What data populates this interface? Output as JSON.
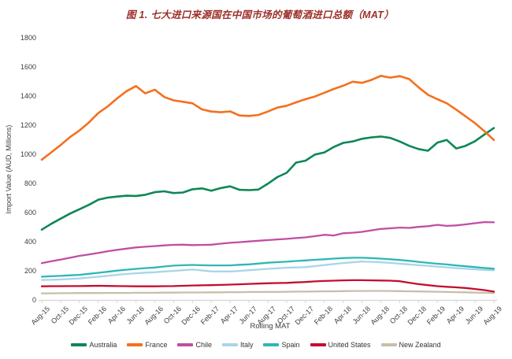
{
  "title": "图 1. 七大进口来源国在中国市场的葡萄酒进口总额（MAT）",
  "colors": {
    "title_text": "#9c2f28",
    "axis_text": "#3d3d3d",
    "axis_line": "#d9d9d9"
  },
  "chart_data": {
    "type": "line",
    "title": "图 1. 七大进口来源国在中国市场的葡萄酒进口总额（MAT）",
    "xlabel": "Rolling MAT",
    "ylabel": "Import Value (AUD, Millions)",
    "ylim": [
      0,
      1800
    ],
    "y_ticks": [
      0,
      200,
      400,
      600,
      800,
      1000,
      1200,
      1400,
      1600,
      1800
    ],
    "grid": false,
    "legend_position": "bottom",
    "x": [
      "Aug-15",
      "Sep-15",
      "Oct-15",
      "Nov-15",
      "Dec-15",
      "Jan-16",
      "Feb-16",
      "Mar-16",
      "Apr-16",
      "May-16",
      "Jun-16",
      "Jul-16",
      "Aug-16",
      "Sep-16",
      "Oct-16",
      "Nov-16",
      "Dec-16",
      "Jan-17",
      "Feb-17",
      "Mar-17",
      "Apr-17",
      "May-17",
      "Jun-17",
      "Jul-17",
      "Aug-17",
      "Sep-17",
      "Oct-17",
      "Nov-17",
      "Dec-17",
      "Jan-18",
      "Feb-18",
      "Mar-18",
      "Apr-18",
      "May-18",
      "Jun-18",
      "Jul-18",
      "Aug-18",
      "Sep-18",
      "Oct-18",
      "Nov-18",
      "Dec-18",
      "Jan-19",
      "Feb-19",
      "Mar-19",
      "Apr-19",
      "May-19",
      "Jun-19",
      "Jul-19",
      "Aug-19"
    ],
    "x_tick_labels": [
      "Aug-15",
      "Oct-15",
      "Dec-15",
      "Feb-16",
      "Apr-16",
      "Jun-16",
      "Aug-16",
      "Oct-16",
      "Dec-16",
      "Feb-17",
      "Apr-17",
      "Jun-17",
      "Aug-17",
      "Oct-17",
      "Dec-17",
      "Feb-18",
      "Apr-18",
      "Jun-18",
      "Aug-18",
      "Oct-18",
      "Dec-18",
      "Feb-19",
      "Apr-19",
      "Jun-19",
      "Aug-19"
    ],
    "series": [
      {
        "name": "Australia",
        "color": "#0d8755",
        "values": [
          485,
          525,
          560,
          595,
          625,
          655,
          690,
          705,
          712,
          718,
          716,
          724,
          742,
          748,
          736,
          740,
          762,
          768,
          752,
          770,
          782,
          758,
          756,
          760,
          800,
          845,
          875,
          945,
          958,
          1000,
          1015,
          1052,
          1080,
          1090,
          1108,
          1118,
          1124,
          1114,
          1090,
          1060,
          1038,
          1026,
          1082,
          1100,
          1042,
          1060,
          1092,
          1138,
          1182
        ]
      },
      {
        "name": "France",
        "color": "#f4701e",
        "values": [
          965,
          1015,
          1065,
          1120,
          1165,
          1220,
          1285,
          1330,
          1385,
          1435,
          1470,
          1420,
          1445,
          1395,
          1372,
          1362,
          1352,
          1310,
          1295,
          1290,
          1296,
          1268,
          1265,
          1272,
          1295,
          1322,
          1335,
          1358,
          1380,
          1398,
          1424,
          1450,
          1472,
          1500,
          1492,
          1512,
          1540,
          1528,
          1538,
          1518,
          1462,
          1410,
          1380,
          1352,
          1308,
          1262,
          1215,
          1160,
          1100
        ]
      },
      {
        "name": "Chile",
        "color": "#bf4fa1",
        "values": [
          255,
          268,
          280,
          292,
          305,
          315,
          325,
          337,
          346,
          355,
          363,
          368,
          372,
          377,
          381,
          382,
          379,
          380,
          382,
          389,
          395,
          399,
          404,
          409,
          413,
          418,
          422,
          427,
          432,
          440,
          450,
          445,
          460,
          464,
          470,
          480,
          490,
          494,
          499,
          497,
          504,
          509,
          518,
          511,
          514,
          521,
          529,
          537,
          535
        ]
      },
      {
        "name": "Italy",
        "color": "#a8d5e8",
        "values": [
          140,
          141,
          143,
          147,
          150,
          156,
          162,
          168,
          175,
          181,
          186,
          190,
          193,
          198,
          202,
          207,
          211,
          205,
          199,
          198,
          198,
          202,
          207,
          211,
          216,
          220,
          224,
          226,
          228,
          235,
          242,
          249,
          256,
          261,
          266,
          264,
          261,
          257,
          251,
          247,
          241,
          237,
          231,
          227,
          221,
          217,
          213,
          209,
          206
        ]
      },
      {
        "name": "Spain",
        "color": "#30b7b4",
        "values": [
          162,
          165,
          168,
          172,
          175,
          182,
          189,
          196,
          204,
          210,
          216,
          221,
          225,
          232,
          238,
          241,
          243,
          241,
          240,
          240,
          240,
          244,
          247,
          252,
          258,
          262,
          265,
          270,
          274,
          278,
          282,
          286,
          290,
          292,
          292,
          290,
          286,
          282,
          277,
          271,
          264,
          257,
          251,
          246,
          239,
          234,
          228,
          222,
          217
        ]
      },
      {
        "name": "United States",
        "color": "#c30e2f",
        "values": [
          96,
          97,
          97,
          98,
          98,
          99,
          100,
          99,
          98,
          97,
          96,
          96,
          96,
          97,
          98,
          100,
          102,
          103,
          104,
          106,
          108,
          110,
          113,
          115,
          117,
          119,
          120,
          123,
          126,
          130,
          133,
          135,
          137,
          138,
          138,
          137,
          136,
          135,
          131,
          121,
          111,
          104,
          97,
          93,
          89,
          85,
          78,
          70,
          60
        ]
      },
      {
        "name": "New Zealand",
        "color": "#c8bfaa",
        "values": [
          48,
          48,
          49,
          49,
          50,
          50,
          50,
          51,
          51,
          51,
          52,
          52,
          52,
          53,
          53,
          54,
          54,
          54,
          55,
          55,
          56,
          56,
          57,
          57,
          58,
          58,
          59,
          60,
          60,
          61,
          62,
          62,
          63,
          64,
          64,
          65,
          65,
          64,
          63,
          62,
          61,
          60,
          59,
          58,
          56,
          55,
          53,
          52,
          50
        ]
      }
    ]
  }
}
